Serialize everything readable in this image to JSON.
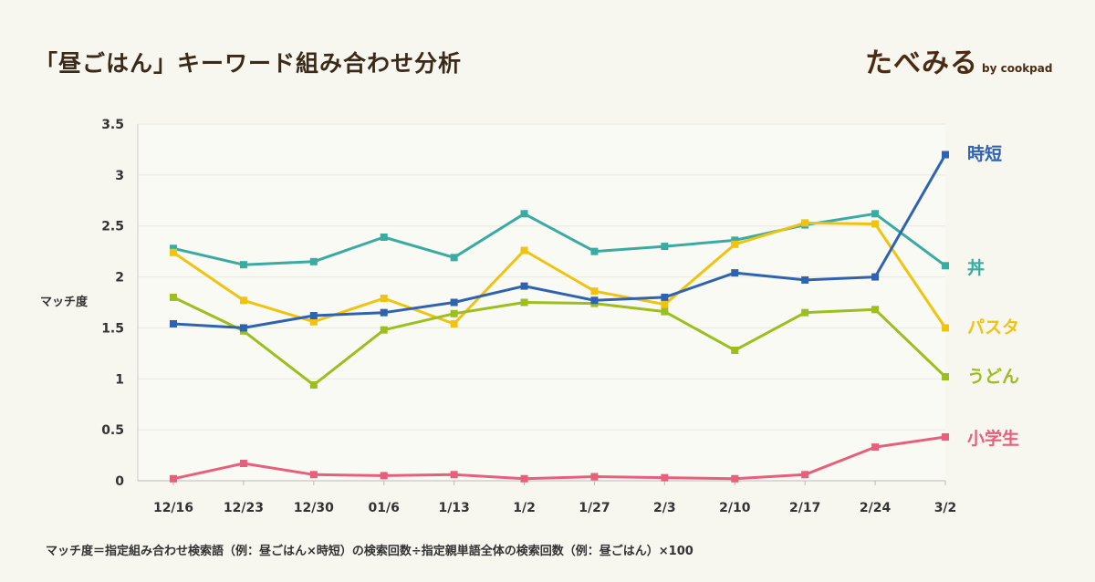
{
  "header": {
    "title": "「昼ごはん」キーワード組み合わせ分析",
    "logo_main": "たべみる",
    "logo_sub": "by cookpad"
  },
  "footnote": "マッチ度＝指定組み合わせ検索語（例：昼ごはん×時短）の検索回数÷指定親単語全体の検索回数（例：昼ごはん）×100",
  "chart_data": {
    "type": "line",
    "ylabel": "マッチ度",
    "xlabel": "",
    "ylim": [
      0,
      3.5
    ],
    "yticks": [
      0,
      0.5,
      1,
      1.5,
      2,
      2.5,
      3,
      3.5
    ],
    "ytick_labels": [
      "0",
      "0.5",
      "1",
      "1.5",
      "2",
      "2.5",
      "3",
      "3.5"
    ],
    "categories": [
      "12/16",
      "12/23",
      "12/30",
      "01/6",
      "1/13",
      "1/2",
      "1/27",
      "2/3",
      "2/10",
      "2/17",
      "2/24",
      "3/2"
    ],
    "grid": "horizontal",
    "legend": "right-end labels",
    "series": [
      {
        "name": "丼",
        "color": "#3aaba2",
        "values": [
          2.28,
          2.12,
          2.15,
          2.39,
          2.19,
          2.62,
          2.25,
          2.3,
          2.36,
          2.51,
          2.62,
          2.11
        ]
      },
      {
        "name": "パスタ",
        "color": "#efc30f",
        "values": [
          2.24,
          1.77,
          1.56,
          1.79,
          1.54,
          2.26,
          1.86,
          1.73,
          2.32,
          2.53,
          2.52,
          1.5
        ]
      },
      {
        "name": "うどん",
        "color": "#9cbe1e",
        "values": [
          1.8,
          1.47,
          0.94,
          1.48,
          1.64,
          1.75,
          1.74,
          1.66,
          1.28,
          1.65,
          1.68,
          1.02
        ]
      },
      {
        "name": "時短",
        "color": "#2f63b0",
        "values": [
          1.54,
          1.5,
          1.62,
          1.65,
          1.75,
          1.91,
          1.77,
          1.8,
          2.04,
          1.97,
          2.0,
          3.2
        ]
      },
      {
        "name": "小学生",
        "color": "#e85f7c",
        "values": [
          0.02,
          0.17,
          0.06,
          0.05,
          0.06,
          0.02,
          0.04,
          0.03,
          0.02,
          0.06,
          0.33,
          0.43
        ]
      }
    ]
  }
}
